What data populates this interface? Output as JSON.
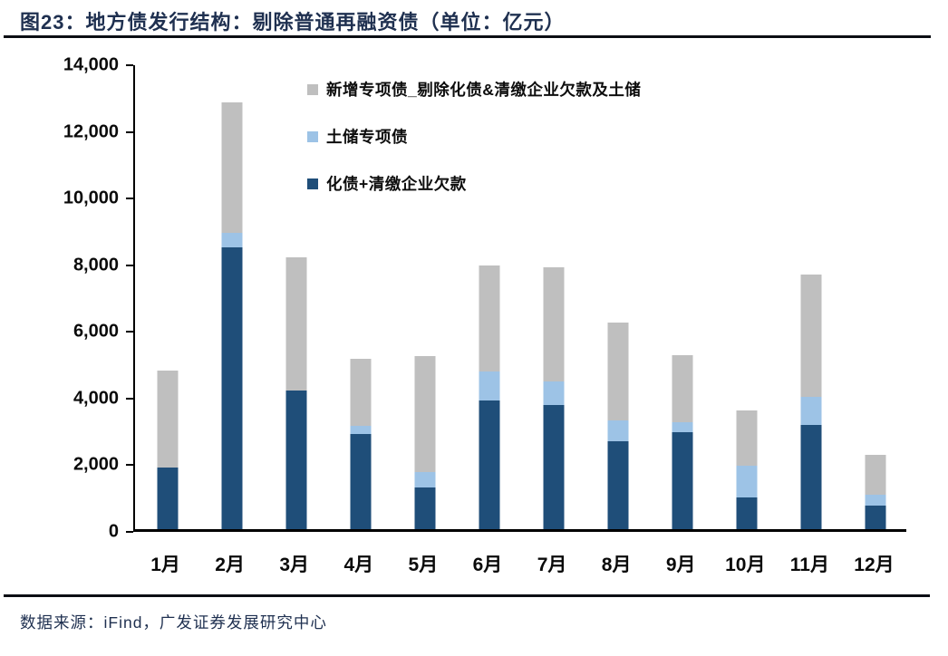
{
  "header": {
    "title": "图23：地方债发行结构：剔除普通再融资债（单位：亿元）"
  },
  "footer": {
    "source": "数据来源：iFind，广发证券发展研究中心"
  },
  "colors": {
    "dark_blue": "#1F4E79",
    "light_blue": "#9DC3E6",
    "gray": "#BFBFBF",
    "title_navy": "#1F3050",
    "axis_black": "#000000"
  },
  "chart_data": {
    "type": "bar",
    "stacked": true,
    "title": "地方债发行结构：剔除普通再融资债",
    "unit": "亿元",
    "categories": [
      "1月",
      "2月",
      "3月",
      "4月",
      "5月",
      "6月",
      "7月",
      "8月",
      "9月",
      "10月",
      "11月",
      "12月"
    ],
    "series": [
      {
        "name": "化债+清缴企业欠款",
        "color": "#1F4E79",
        "values": [
          1850,
          8450,
          4170,
          2860,
          1250,
          3860,
          3730,
          2640,
          2900,
          960,
          3140,
          710
        ]
      },
      {
        "name": "土储专项债",
        "color": "#9DC3E6",
        "values": [
          0,
          450,
          0,
          230,
          460,
          870,
          700,
          620,
          300,
          930,
          840,
          320
        ]
      },
      {
        "name": "新增专项债_剔除化债&清缴企业欠款及土储",
        "color": "#BFBFBF",
        "values": [
          2920,
          3900,
          3980,
          2030,
          3480,
          3180,
          3420,
          2950,
          2010,
          1670,
          3650,
          1190
        ]
      }
    ],
    "totals": [
      4770,
      12800,
      8150,
      5120,
      5190,
      7910,
      7850,
      6210,
      5210,
      3560,
      7630,
      2220
    ],
    "ylim": [
      0,
      14000
    ],
    "ytick_step": 2000,
    "ytick_labels": [
      "14,000",
      "12,000",
      "10,000",
      "8,000",
      "6,000",
      "4,000",
      "2,000",
      "0"
    ],
    "legend_position": "top-center-inside",
    "grid": false
  }
}
